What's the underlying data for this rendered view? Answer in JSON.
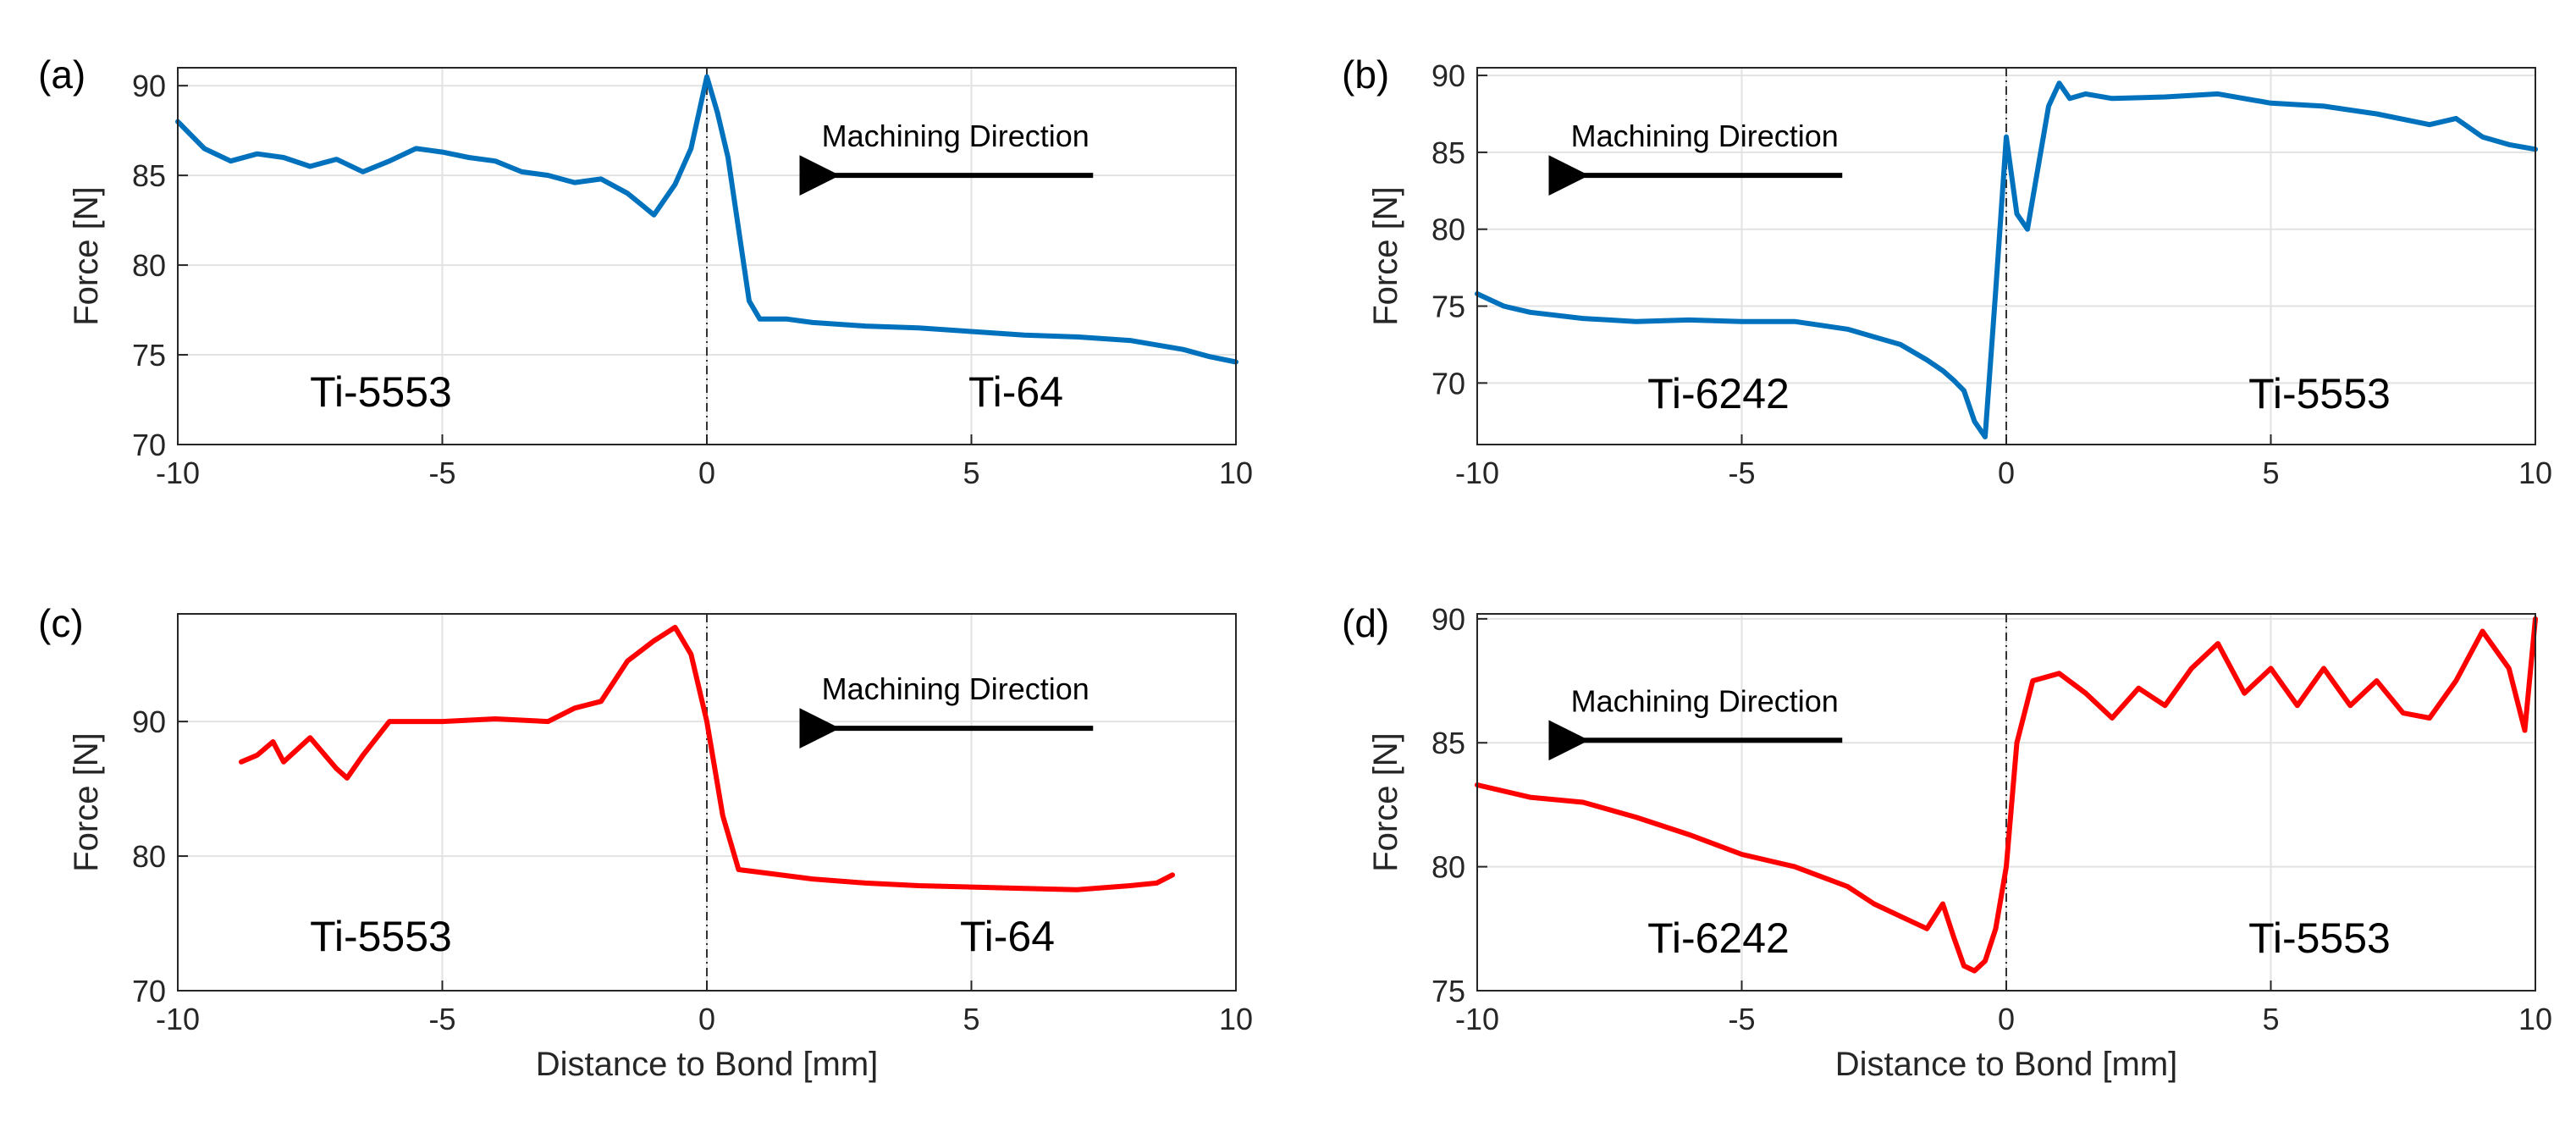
{
  "figure": {
    "shared_xlabel": "Distance to Bond [mm]"
  },
  "chart_data": [
    {
      "panel_label": "(a)",
      "type": "line",
      "ylabel": "Force [N]",
      "xlabel": "",
      "xlim": [
        -10,
        10
      ],
      "ylim": [
        70,
        91
      ],
      "xticks": [
        -10,
        -5,
        0,
        5,
        10
      ],
      "xtick_labels": [
        "-10",
        "-5",
        "0",
        "5",
        "10"
      ],
      "yticks": [
        70,
        75,
        80,
        85,
        90
      ],
      "ytick_labels": [
        "70",
        "75",
        "80",
        "85",
        "90"
      ],
      "grid": true,
      "color": "#0072BD",
      "bond_line_x": 0,
      "material_left": "Ti-5553",
      "material_right": "Ti-64",
      "direction_text": "Machining Direction",
      "arrow_from_x": 7.3,
      "arrow_to_x": 2.1,
      "arrow_y": 85.0,
      "series": [
        {
          "name": "Force",
          "x": [
            -10,
            -9.5,
            -9,
            -8.5,
            -8,
            -7.5,
            -7,
            -6.5,
            -6,
            -5.5,
            -5,
            -4.5,
            -4,
            -3.5,
            -3,
            -2.5,
            -2,
            -1.5,
            -1,
            -0.6,
            -0.3,
            0,
            0.2,
            0.4,
            0.6,
            0.8,
            1,
            1.5,
            2,
            3,
            4,
            5,
            6,
            7,
            8,
            9,
            9.5,
            10
          ],
          "y": [
            88.0,
            86.5,
            85.8,
            86.2,
            86.0,
            85.5,
            85.9,
            85.2,
            85.8,
            86.5,
            86.3,
            86.0,
            85.8,
            85.2,
            85.0,
            84.6,
            84.8,
            84.0,
            82.8,
            84.5,
            86.5,
            90.5,
            88.5,
            86.0,
            82.0,
            78.0,
            77.0,
            77.0,
            76.8,
            76.6,
            76.5,
            76.3,
            76.1,
            76.0,
            75.8,
            75.3,
            74.9,
            74.6
          ]
        }
      ]
    },
    {
      "panel_label": "(b)",
      "type": "line",
      "ylabel": "Force [N]",
      "xlabel": "",
      "xlim": [
        -10,
        10
      ],
      "ylim": [
        66,
        90.5
      ],
      "xticks": [
        -10,
        -5,
        0,
        5,
        10
      ],
      "xtick_labels": [
        "-10",
        "-5",
        "0",
        "5",
        "10"
      ],
      "yticks": [
        70,
        75,
        80,
        85,
        90
      ],
      "ytick_labels": [
        "70",
        "75",
        "80",
        "85",
        "90"
      ],
      "grid": true,
      "color": "#0072BD",
      "bond_line_x": 0,
      "material_left": "Ti-6242",
      "material_right": "Ti-5553",
      "direction_text": "Machining Direction",
      "arrow_from_x": -3.1,
      "arrow_to_x": -8.3,
      "arrow_y": 83.5,
      "series": [
        {
          "name": "Force",
          "x": [
            -10,
            -9.5,
            -9,
            -8,
            -7,
            -6,
            -5,
            -4,
            -3,
            -2.5,
            -2,
            -1.5,
            -1.2,
            -1,
            -0.8,
            -0.6,
            -0.4,
            -0.2,
            0,
            0.2,
            0.4,
            0.6,
            0.8,
            1,
            1.2,
            1.5,
            2,
            3,
            4,
            5,
            6,
            7,
            8,
            8.5,
            9,
            9.5,
            10
          ],
          "y": [
            75.8,
            75.0,
            74.6,
            74.2,
            74.0,
            74.1,
            74.0,
            74.0,
            73.5,
            73.0,
            72.5,
            71.5,
            70.8,
            70.2,
            69.5,
            67.5,
            66.5,
            76.0,
            86.0,
            81.0,
            80.0,
            84.0,
            88.0,
            89.5,
            88.5,
            88.8,
            88.5,
            88.6,
            88.8,
            88.2,
            88.0,
            87.5,
            86.8,
            87.2,
            86.0,
            85.5,
            85.2
          ]
        }
      ]
    },
    {
      "panel_label": "(c)",
      "type": "line",
      "ylabel": "Force [N]",
      "xlabel": "Distance to Bond [mm]",
      "xlim": [
        -10,
        10
      ],
      "ylim": [
        70,
        98
      ],
      "xticks": [
        -10,
        -5,
        0,
        5,
        10
      ],
      "xtick_labels": [
        "-10",
        "-5",
        "0",
        "5",
        "10"
      ],
      "yticks": [
        70,
        80,
        90
      ],
      "ytick_labels": [
        "70",
        "80",
        "90"
      ],
      "grid": true,
      "color": "#FF0000",
      "bond_line_x": 0,
      "material_left": "Ti-5553",
      "material_right": "Ti-64",
      "direction_text": "Machining Direction",
      "arrow_from_x": 7.3,
      "arrow_to_x": 2.1,
      "arrow_y": 89.5,
      "series": [
        {
          "name": "Force",
          "x": [
            -8.8,
            -8.5,
            -8.2,
            -8,
            -7.5,
            -7,
            -6.8,
            -6.5,
            -6,
            -5,
            -4,
            -3,
            -2.5,
            -2,
            -1.5,
            -1,
            -0.6,
            -0.3,
            0,
            0.3,
            0.6,
            1,
            2,
            3,
            4,
            5,
            6,
            7,
            8,
            8.5,
            8.8
          ],
          "y": [
            87.0,
            87.5,
            88.5,
            87.0,
            88.8,
            86.5,
            85.8,
            87.5,
            90.0,
            90.0,
            90.2,
            90.0,
            91.0,
            91.5,
            94.5,
            96.0,
            97.0,
            95.0,
            90.0,
            83.0,
            79.0,
            78.8,
            78.3,
            78.0,
            77.8,
            77.7,
            77.6,
            77.5,
            77.8,
            78.0,
            78.6
          ]
        }
      ]
    },
    {
      "panel_label": "(d)",
      "type": "line",
      "ylabel": "Force [N]",
      "xlabel": "Distance to Bond [mm]",
      "xlim": [
        -10,
        10
      ],
      "ylim": [
        75,
        90.2
      ],
      "xticks": [
        -10,
        -5,
        0,
        5,
        10
      ],
      "xtick_labels": [
        "-10",
        "-5",
        "0",
        "5",
        "10"
      ],
      "yticks": [
        75,
        80,
        85,
        90
      ],
      "ytick_labels": [
        "75",
        "80",
        "85",
        "90"
      ],
      "grid": true,
      "color": "#FF0000",
      "bond_line_x": 0,
      "material_left": "Ti-6242",
      "material_right": "Ti-5553",
      "direction_text": "Machining Direction",
      "arrow_from_x": -3.1,
      "arrow_to_x": -8.3,
      "arrow_y": 85.1,
      "series": [
        {
          "name": "Force",
          "x": [
            -10,
            -9,
            -8,
            -7,
            -6,
            -5,
            -4,
            -3,
            -2.5,
            -2,
            -1.5,
            -1.2,
            -1,
            -0.8,
            -0.6,
            -0.4,
            -0.2,
            0,
            0.2,
            0.5,
            1,
            1.5,
            2,
            2.5,
            3,
            3.5,
            4,
            4.5,
            5,
            5.5,
            6,
            6.5,
            7,
            7.5,
            8,
            8.5,
            9,
            9.5,
            9.8,
            10
          ],
          "y": [
            83.3,
            82.8,
            82.6,
            82.0,
            81.3,
            80.5,
            80.0,
            79.2,
            78.5,
            78.0,
            77.5,
            78.5,
            77.2,
            76.0,
            75.8,
            76.2,
            77.5,
            80.0,
            85.0,
            87.5,
            87.8,
            87.0,
            86.0,
            87.2,
            86.5,
            88.0,
            89.0,
            87.0,
            88.0,
            86.5,
            88.0,
            86.5,
            87.5,
            86.2,
            86.0,
            87.5,
            89.5,
            88.0,
            85.5,
            90.0
          ]
        }
      ]
    }
  ]
}
